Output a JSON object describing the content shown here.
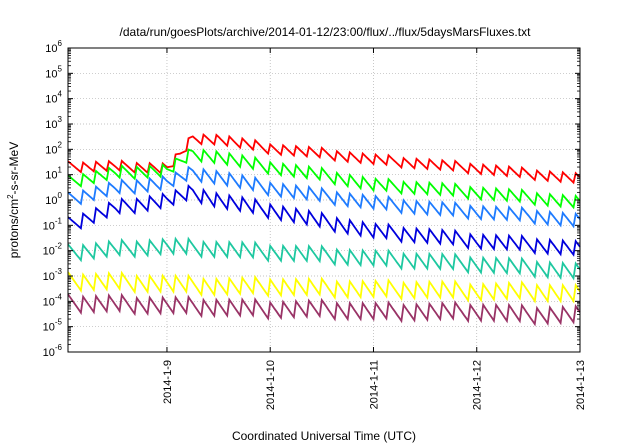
{
  "chart_data": {
    "type": "line",
    "title": "/data/run/goesPlots/archive/2014-01-12/23:00/flux/../flux/5daysMarsFluxes.txt",
    "xlabel": "Coordinated Universal Time (UTC)",
    "ylabel": {
      "prefix": "protons/cm",
      "sup": "2",
      "suffix": "-s-sr-MeV"
    },
    "xlim": [
      "2014-01-08 01:00",
      "2014-01-13 00:00"
    ],
    "x_ticks": [
      {
        "label": "2014-1-9",
        "date": "2014-01-09"
      },
      {
        "label": "2014-1-10",
        "date": "2014-01-10"
      },
      {
        "label": "2014-1-11",
        "date": "2014-01-11"
      },
      {
        "label": "2014-1-12",
        "date": "2014-01-12"
      },
      {
        "label": "2014-1-13",
        "date": "2014-01-13"
      }
    ],
    "y_scale": "log",
    "ylim": [
      1e-06,
      1000000.0
    ],
    "y_ticks": [
      {
        "base": "10",
        "exp": "-6"
      },
      {
        "base": "10",
        "exp": "-5"
      },
      {
        "base": "10",
        "exp": "-4"
      },
      {
        "base": "10",
        "exp": "-3"
      },
      {
        "base": "10",
        "exp": "-2"
      },
      {
        "base": "10",
        "exp": "-1"
      },
      {
        "base": "10",
        "exp": "0"
      },
      {
        "base": "10",
        "exp": "1"
      },
      {
        "base": "10",
        "exp": "2"
      },
      {
        "base": "10",
        "exp": "3"
      },
      {
        "base": "10",
        "exp": "4"
      },
      {
        "base": "10",
        "exp": "5"
      },
      {
        "base": "10",
        "exp": "6"
      }
    ],
    "grid": true,
    "legend": "none",
    "series": [
      {
        "color": "#ff0000",
        "x": [
          "2014-01-08 01:00",
          "2014-01-08 12:00",
          "2014-01-09 00:00",
          "2014-01-09 03:00",
          "2014-01-09 06:00",
          "2014-01-09 12:00",
          "2014-01-10 00:00",
          "2014-01-10 12:00",
          "2014-01-11 00:00",
          "2014-01-11 12:00",
          "2014-01-12 00:00",
          "2014-01-12 12:00",
          "2014-01-13 00:00"
        ],
        "y": [
          20,
          22,
          18,
          60,
          280,
          250,
          110,
          70,
          40,
          27,
          18,
          11,
          7
        ]
      },
      {
        "color": "#00ff00",
        "x": [
          "2014-01-08 01:00",
          "2014-01-08 12:00",
          "2014-01-09 00:00",
          "2014-01-09 06:00",
          "2014-01-09 12:00",
          "2014-01-10 00:00",
          "2014-01-10 12:00",
          "2014-01-11 00:00",
          "2014-01-11 12:00",
          "2014-01-12 00:00",
          "2014-01-12 12:00",
          "2014-01-13 00:00"
        ],
        "y": [
          5,
          12,
          15,
          70,
          50,
          20,
          10,
          4,
          3,
          2,
          1.3,
          0.8
        ]
      },
      {
        "color": "#1e7bff",
        "x": [
          "2014-01-08 01:00",
          "2014-01-08 12:00",
          "2014-01-09 00:00",
          "2014-01-09 06:00",
          "2014-01-09 12:00",
          "2014-01-10 00:00",
          "2014-01-10 12:00",
          "2014-01-11 00:00",
          "2014-01-11 12:00",
          "2014-01-12 00:00",
          "2014-01-12 12:00",
          "2014-01-13 00:00"
        ],
        "y": [
          1,
          3,
          5,
          12,
          8,
          3,
          1.5,
          0.8,
          0.5,
          0.35,
          0.25,
          0.15
        ]
      },
      {
        "color": "#0000dd",
        "x": [
          "2014-01-08 01:00",
          "2014-01-08 12:00",
          "2014-01-09 00:00",
          "2014-01-09 06:00",
          "2014-01-09 12:00",
          "2014-01-10 00:00",
          "2014-01-10 12:00",
          "2014-01-11 00:00",
          "2014-01-11 12:00",
          "2014-01-12 00:00",
          "2014-01-12 12:00",
          "2014-01-13 00:00"
        ],
        "y": [
          0.1,
          0.5,
          1,
          2,
          1,
          0.4,
          0.15,
          0.06,
          0.04,
          0.025,
          0.018,
          0.012
        ]
      },
      {
        "color": "#1ec8a0",
        "x": [
          "2014-01-08 01:00",
          "2014-01-08 12:00",
          "2014-01-09 00:00",
          "2014-01-09 12:00",
          "2014-01-10 00:00",
          "2014-01-10 12:00",
          "2014-01-11 00:00",
          "2014-01-11 12:00",
          "2014-01-12 00:00",
          "2014-01-12 12:00",
          "2014-01-13 00:00"
        ],
        "y": [
          0.008,
          0.012,
          0.015,
          0.012,
          0.009,
          0.007,
          0.005,
          0.004,
          0.003,
          0.0022,
          0.0015
        ]
      },
      {
        "color": "#ffff00",
        "x": [
          "2014-01-08 01:00",
          "2014-01-08 12:00",
          "2014-01-09 00:00",
          "2014-01-09 12:00",
          "2014-01-10 00:00",
          "2014-01-10 12:00",
          "2014-01-11 00:00",
          "2014-01-11 12:00",
          "2014-01-12 00:00",
          "2014-01-12 12:00",
          "2014-01-13 00:00"
        ],
        "y": [
          0.0006,
          0.0006,
          0.0005,
          0.0004,
          0.0004,
          0.00035,
          0.0003,
          0.0003,
          0.00025,
          0.00025,
          0.0002
        ]
      },
      {
        "color": "#993366",
        "x": [
          "2014-01-08 01:00",
          "2014-01-08 12:00",
          "2014-01-09 00:00",
          "2014-01-09 12:00",
          "2014-01-10 00:00",
          "2014-01-10 12:00",
          "2014-01-11 00:00",
          "2014-01-11 12:00",
          "2014-01-12 00:00",
          "2014-01-12 12:00",
          "2014-01-13 00:00"
        ],
        "y": [
          8e-05,
          8e-05,
          7e-05,
          6e-05,
          5e-05,
          5e-05,
          4e-05,
          4e-05,
          4e-05,
          3e-05,
          3e-05
        ]
      }
    ]
  }
}
